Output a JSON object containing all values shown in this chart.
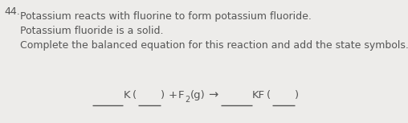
{
  "background_color": "#edecea",
  "question_number": "44.",
  "line1": "Potassium reacts with fluorine to form potassium fluoride.",
  "line2": "Potassium fluoride is a solid.",
  "line3": "Complete the balanced equation for this reaction and add the state symbols.",
  "text_color": "#555555",
  "font_size_body": 9.0,
  "font_size_eq": 9.5,
  "figsize": [
    5.08,
    1.53
  ],
  "dpi": 100
}
